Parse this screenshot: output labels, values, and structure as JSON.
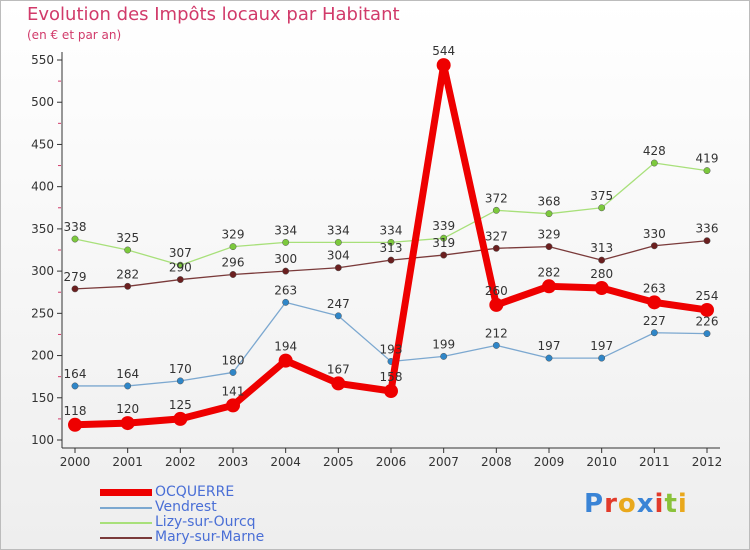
{
  "title": "Evolution des Impôts locaux par Habitant",
  "subtitle": "(en € et par an)",
  "brand": {
    "text": "Proxiti",
    "colors": [
      "#3a84d6",
      "#e23a2a",
      "#e9a81c",
      "#3a84d6",
      "#e23a2a",
      "#8ac23a",
      "#e9a81c"
    ]
  },
  "chart_data": {
    "type": "line",
    "title": "Evolution des Impôts locaux par Habitant",
    "subtitle": "(en € et par an)",
    "xlabel": "",
    "ylabel": "",
    "ylim": [
      100,
      550
    ],
    "yticks": [
      100,
      150,
      200,
      250,
      300,
      350,
      400,
      450,
      500,
      550
    ],
    "grid": false,
    "categories": [
      "2000",
      "2001",
      "2002",
      "2003",
      "2004",
      "2005",
      "2006",
      "2007",
      "2008",
      "2009",
      "2010",
      "2011",
      "2012"
    ],
    "series": [
      {
        "name": "OCQUERRE",
        "color": "#ee0000",
        "marker": "#ee0000",
        "width": 7,
        "radius": 7,
        "values": [
          118,
          120,
          125,
          141,
          194,
          167,
          158,
          544,
          260,
          282,
          280,
          263,
          254
        ]
      },
      {
        "name": "Vendrest",
        "color": "#7ca8d0",
        "marker": "#2f86c8",
        "width": 1.3,
        "radius": 3.2,
        "values": [
          164,
          164,
          170,
          180,
          263,
          247,
          193,
          199,
          212,
          197,
          197,
          227,
          226
        ]
      },
      {
        "name": "Lizy-sur-Ourcq",
        "color": "#a8e07a",
        "marker": "#7cc93c",
        "width": 1.3,
        "radius": 3.2,
        "values": [
          338,
          325,
          307,
          329,
          334,
          334,
          334,
          339,
          372,
          368,
          375,
          428,
          419
        ]
      },
      {
        "name": "Mary-sur-Marne",
        "color": "#7a3a3a",
        "marker": "#6b1f1f",
        "width": 1.3,
        "radius": 3.2,
        "values": [
          279,
          282,
          290,
          296,
          300,
          304,
          313,
          319,
          327,
          329,
          313,
          330,
          336
        ]
      }
    ],
    "legend": "bottom-left"
  }
}
